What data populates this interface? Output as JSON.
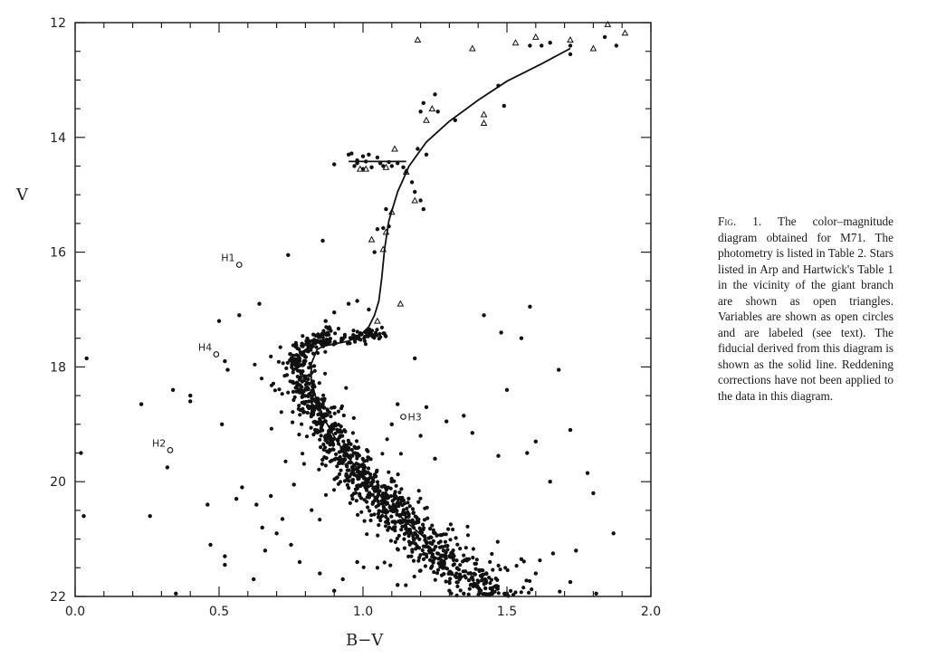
{
  "caption": {
    "fig_label": "Fig. 1.",
    "text": " The color–magnitude diagram obtained for M71. The photometry is listed in Table 2. Stars listed in Arp and Hartwick's Table 1 in the vicinity of the giant branch are shown as open triangles. Variables are shown as open circles and are labeled (see text). The fiducial derived from this diagram is shown as the solid line. Reddening corrections have not been applied to the data in this diagram."
  },
  "chart_data": {
    "type": "scatter",
    "title": "The color–magnitude diagram obtained for M71",
    "xlabel": "B−V",
    "ylabel": "V",
    "xlim": [
      0.0,
      2.0
    ],
    "ylim": [
      22,
      12
    ],
    "y_inverted": true,
    "grid": false,
    "legend": "none (described in caption)",
    "x_ticks": [
      {
        "value": 0.0,
        "label": "0.0"
      },
      {
        "value": 0.5,
        "label": "0.5"
      },
      {
        "value": 1.0,
        "label": "1.0"
      },
      {
        "value": 1.5,
        "label": "1.5"
      },
      {
        "value": 2.0,
        "label": "2.0"
      }
    ],
    "x_minor_step": 0.1,
    "y_ticks": [
      {
        "value": 12,
        "label": "12"
      },
      {
        "value": 14,
        "label": "14"
      },
      {
        "value": 16,
        "label": "16"
      },
      {
        "value": 18,
        "label": "18"
      },
      {
        "value": 20,
        "label": "20"
      },
      {
        "value": 22,
        "label": "22"
      }
    ],
    "y_minor_step": 0.5,
    "series": [
      {
        "name": "fiducial",
        "style": "solid line",
        "points": [
          [
            1.72,
            12.45
          ],
          [
            1.62,
            12.72
          ],
          [
            1.5,
            13.02
          ],
          [
            1.4,
            13.35
          ],
          [
            1.3,
            13.72
          ],
          [
            1.22,
            14.08
          ],
          [
            1.16,
            14.5
          ],
          [
            1.12,
            14.95
          ],
          [
            1.09,
            15.45
          ],
          [
            1.075,
            15.95
          ],
          [
            1.065,
            16.45
          ],
          [
            1.055,
            16.85
          ],
          [
            1.04,
            17.1
          ],
          [
            1.02,
            17.3
          ],
          [
            0.99,
            17.45
          ],
          [
            0.95,
            17.55
          ],
          [
            0.9,
            17.6
          ],
          [
            0.86,
            17.64
          ],
          [
            0.84,
            17.7
          ]
        ]
      },
      {
        "name": "fiducial-main-sequence",
        "style": "solid line",
        "points": [
          [
            0.84,
            17.7
          ],
          [
            0.82,
            17.95
          ],
          [
            0.82,
            18.25
          ],
          [
            0.84,
            18.6
          ],
          [
            0.87,
            18.95
          ],
          [
            0.91,
            19.3
          ],
          [
            0.96,
            19.65
          ],
          [
            1.02,
            20.0
          ],
          [
            1.08,
            20.35
          ],
          [
            1.15,
            20.7
          ],
          [
            1.22,
            21.0
          ]
        ]
      },
      {
        "name": "horizontal-branch-line",
        "style": "solid line",
        "points": [
          [
            0.95,
            14.42
          ],
          [
            1.15,
            14.42
          ]
        ]
      },
      {
        "name": "Arp & Hartwick giants (open triangles)",
        "marker": "open-triangle",
        "points": [
          [
            1.19,
            12.3
          ],
          [
            1.38,
            12.45
          ],
          [
            1.53,
            12.35
          ],
          [
            1.72,
            12.3
          ],
          [
            1.8,
            12.45
          ],
          [
            1.85,
            12.03
          ],
          [
            1.91,
            12.18
          ],
          [
            1.24,
            13.5
          ],
          [
            1.22,
            13.7
          ],
          [
            1.42,
            13.75
          ],
          [
            1.6,
            12.25
          ],
          [
            1.42,
            13.6
          ],
          [
            1.15,
            14.6
          ],
          [
            1.18,
            15.1
          ],
          [
            1.1,
            15.3
          ],
          [
            0.99,
            14.55
          ],
          [
            1.01,
            14.55
          ],
          [
            1.08,
            15.65
          ],
          [
            1.07,
            15.95
          ],
          [
            1.03,
            15.78
          ],
          [
            1.08,
            14.52
          ],
          [
            1.11,
            14.2
          ],
          [
            1.05,
            17.2
          ],
          [
            1.13,
            16.9
          ]
        ]
      },
      {
        "name": "Horizontal branch stars",
        "marker": "filled-circle",
        "points": [
          [
            0.95,
            14.3
          ],
          [
            0.96,
            14.28
          ],
          [
            1.0,
            14.33
          ],
          [
            1.02,
            14.3
          ],
          [
            1.05,
            14.35
          ],
          [
            0.98,
            14.4
          ],
          [
            1.01,
            14.42
          ],
          [
            1.06,
            14.45
          ],
          [
            1.09,
            14.43
          ],
          [
            1.12,
            14.45
          ],
          [
            0.9,
            14.47
          ],
          [
            0.97,
            14.5
          ],
          [
            1.0,
            14.55
          ],
          [
            1.03,
            14.52
          ],
          [
            1.07,
            14.5
          ],
          [
            1.1,
            14.5
          ],
          [
            1.14,
            14.52
          ]
        ]
      },
      {
        "name": "Giant branch / field stars (filled)",
        "marker": "filled-circle",
        "points": [
          [
            1.25,
            13.25
          ],
          [
            1.21,
            13.4
          ],
          [
            1.2,
            13.55
          ],
          [
            1.26,
            13.55
          ],
          [
            1.32,
            13.7
          ],
          [
            1.22,
            14.3
          ],
          [
            1.19,
            14.2
          ],
          [
            1.15,
            14.6
          ],
          [
            1.18,
            14.95
          ],
          [
            1.2,
            15.1
          ],
          [
            1.21,
            15.25
          ],
          [
            1.17,
            14.78
          ],
          [
            1.08,
            15.25
          ],
          [
            1.07,
            15.58
          ],
          [
            1.09,
            15.55
          ],
          [
            1.04,
            16.0
          ],
          [
            1.05,
            15.6
          ],
          [
            0.98,
            14.45
          ],
          [
            1.47,
            13.1
          ],
          [
            1.49,
            13.45
          ],
          [
            1.58,
            12.4
          ],
          [
            1.62,
            12.4
          ],
          [
            1.65,
            12.35
          ],
          [
            1.72,
            12.4
          ],
          [
            1.84,
            12.25
          ],
          [
            1.88,
            12.4
          ],
          [
            1.72,
            12.55
          ],
          [
            0.86,
            15.8
          ],
          [
            0.74,
            16.05
          ],
          [
            0.87,
            17.2
          ],
          [
            0.9,
            17.05
          ],
          [
            0.95,
            16.9
          ],
          [
            0.98,
            16.85
          ],
          [
            1.02,
            17.0
          ],
          [
            1.18,
            17.85
          ],
          [
            1.42,
            17.1
          ],
          [
            1.48,
            17.4
          ],
          [
            1.58,
            16.95
          ],
          [
            1.55,
            17.5
          ],
          [
            1.5,
            18.4
          ],
          [
            1.68,
            18.05
          ],
          [
            1.72,
            19.1
          ],
          [
            1.6,
            19.3
          ],
          [
            1.57,
            19.5
          ],
          [
            1.65,
            20.0
          ],
          [
            1.78,
            19.85
          ],
          [
            1.8,
            20.2
          ],
          [
            1.87,
            20.9
          ],
          [
            1.74,
            21.2
          ],
          [
            1.66,
            21.25
          ],
          [
            1.55,
            21.35
          ],
          [
            1.45,
            21.85
          ],
          [
            1.3,
            21.9
          ],
          [
            1.35,
            21.95
          ],
          [
            1.6,
            21.6
          ],
          [
            1.72,
            21.75
          ],
          [
            1.81,
            21.95
          ],
          [
            1.22,
            18.7
          ],
          [
            1.29,
            18.95
          ],
          [
            1.35,
            18.85
          ],
          [
            1.38,
            19.15
          ],
          [
            1.47,
            19.55
          ],
          [
            1.2,
            19.2
          ],
          [
            1.1,
            19.0
          ],
          [
            1.12,
            18.65
          ],
          [
            1.25,
            19.6
          ],
          [
            0.02,
            19.5
          ],
          [
            0.03,
            20.6
          ],
          [
            0.04,
            17.85
          ],
          [
            0.23,
            18.65
          ],
          [
            0.26,
            20.6
          ],
          [
            0.32,
            19.75
          ],
          [
            0.34,
            18.4
          ],
          [
            0.4,
            18.5
          ],
          [
            0.4,
            18.6
          ],
          [
            0.46,
            20.4
          ],
          [
            0.47,
            21.1
          ],
          [
            0.35,
            21.95
          ],
          [
            0.5,
            17.2
          ],
          [
            0.52,
            17.9
          ],
          [
            0.53,
            18.05
          ],
          [
            0.52,
            21.45
          ],
          [
            0.52,
            21.3
          ],
          [
            0.51,
            19.0
          ],
          [
            0.57,
            17.1
          ],
          [
            0.64,
            16.9
          ],
          [
            0.56,
            20.3
          ],
          [
            0.58,
            20.1
          ],
          [
            0.63,
            20.4
          ],
          [
            0.65,
            20.8
          ],
          [
            0.62,
            21.7
          ],
          [
            0.66,
            21.2
          ],
          [
            0.68,
            20.25
          ],
          [
            0.7,
            20.9
          ],
          [
            0.72,
            20.65
          ],
          [
            0.75,
            21.1
          ],
          [
            0.78,
            21.4
          ],
          [
            0.76,
            20.05
          ],
          [
            0.85,
            21.6
          ],
          [
            0.9,
            21.9
          ],
          [
            0.93,
            21.7
          ],
          [
            0.98,
            21.4
          ],
          [
            1.05,
            21.5
          ],
          [
            1.12,
            21.8
          ],
          [
            1.2,
            21.55
          ],
          [
            1.28,
            21.2
          ],
          [
            1.36,
            21.35
          ]
        ]
      },
      {
        "name": "Main-sequence / turnoff (dense, filled circles)",
        "marker": "filled-circle",
        "density_model": {
          "count": 1100,
          "ridge": [
            [
              0.88,
              17.4
            ],
            [
              0.8,
              17.6
            ],
            [
              0.77,
              17.9
            ],
            [
              0.78,
              18.2
            ],
            [
              0.81,
              18.55
            ],
            [
              0.85,
              18.9
            ],
            [
              0.89,
              19.25
            ],
            [
              0.95,
              19.6
            ],
            [
              1.0,
              19.95
            ],
            [
              1.07,
              20.3
            ],
            [
              1.13,
              20.6
            ],
            [
              1.2,
              20.95
            ],
            [
              1.28,
              21.3
            ],
            [
              1.36,
              21.65
            ],
            [
              1.44,
              21.95
            ]
          ],
          "color_spread": [
            0.04,
            0.16
          ],
          "magnitude_range": [
            17.3,
            22.0
          ],
          "seed": 71
        }
      },
      {
        "name": "Variables (open circles)",
        "marker": "open-circle",
        "points": [
          {
            "x": 0.57,
            "y": 16.22,
            "label": "H1"
          },
          {
            "x": 0.33,
            "y": 19.45,
            "label": "H2"
          },
          {
            "x": 1.14,
            "y": 18.87,
            "label": "H3"
          },
          {
            "x": 0.49,
            "y": 17.78,
            "label": "H4"
          }
        ]
      }
    ]
  }
}
